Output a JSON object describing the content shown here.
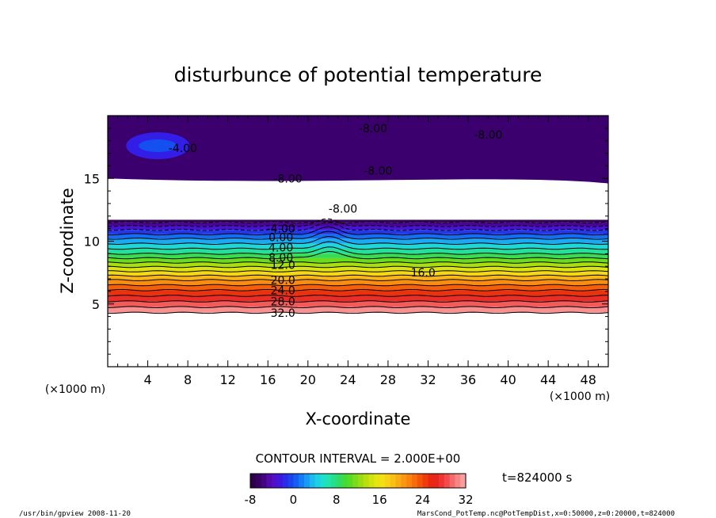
{
  "chart_data": {
    "type": "contour",
    "title": "disturbunce of potential temperature",
    "xlabel": "X-coordinate",
    "ylabel": "Z-coordinate",
    "x_unit": "(×1000 m)",
    "z_unit": "(×1000 m)",
    "xlim": [
      0,
      50
    ],
    "ylim": [
      0,
      20
    ],
    "x_ticks": [
      4,
      8,
      12,
      16,
      20,
      24,
      28,
      32,
      36,
      40,
      44,
      48
    ],
    "y_ticks": [
      5,
      10,
      15
    ],
    "contour_interval_text": "CONTOUR INTERVAL = 2.000E+00",
    "time_text": "t=824000 s",
    "colorbar": {
      "min": -8,
      "max": 32,
      "ticks": [
        -8,
        0,
        8,
        16,
        24,
        32
      ]
    },
    "contour_labels": [
      {
        "text": "32.0",
        "x": 17.5,
        "z": 4.3
      },
      {
        "text": "28.0",
        "x": 17.5,
        "z": 5.2
      },
      {
        "text": "24.0",
        "x": 17.5,
        "z": 6.1
      },
      {
        "text": "20.0",
        "x": 17.5,
        "z": 6.9
      },
      {
        "text": "16.0",
        "x": 31.5,
        "z": 7.5
      },
      {
        "text": "12.0",
        "x": 17.5,
        "z": 8.1
      },
      {
        "text": "8.00",
        "x": 17.3,
        "z": 8.7
      },
      {
        "text": "4.00",
        "x": 17.3,
        "z": 9.5
      },
      {
        "text": "0.00",
        "x": 17.3,
        "z": 10.3
      },
      {
        "text": "-4.00",
        "x": 17.3,
        "z": 11.0
      },
      {
        "text": "-8.00",
        "x": 23.5,
        "z": 12.6
      },
      {
        "text": "-8.00",
        "x": 18.0,
        "z": 15.0
      },
      {
        "text": "-8.00",
        "x": 27.0,
        "z": 15.6
      },
      {
        "text": "-4.00",
        "x": 7.5,
        "z": 17.4
      },
      {
        "text": "-8.00",
        "x": 26.5,
        "z": 19.0
      },
      {
        "text": "-8.00",
        "x": 38.0,
        "z": 18.5
      }
    ],
    "levels": [
      {
        "value": 32,
        "z": 4.3
      },
      {
        "value": 30,
        "z": 4.75
      },
      {
        "value": 28,
        "z": 5.2
      },
      {
        "value": 26,
        "z": 5.65
      },
      {
        "value": 24,
        "z": 6.1
      },
      {
        "value": 22,
        "z": 6.5
      },
      {
        "value": 20,
        "z": 6.9
      },
      {
        "value": 18,
        "z": 7.25
      },
      {
        "value": 16,
        "z": 7.6
      },
      {
        "value": 14,
        "z": 7.95
      },
      {
        "value": 12,
        "z": 8.3
      },
      {
        "value": 10,
        "z": 8.65
      },
      {
        "value": 8,
        "z": 9.0
      },
      {
        "value": 6,
        "z": 9.4
      },
      {
        "value": 4,
        "z": 9.8
      },
      {
        "value": 2,
        "z": 10.2
      },
      {
        "value": 0,
        "z": 10.55
      },
      {
        "value": -2,
        "z": 10.9
      },
      {
        "value": -4,
        "z": 11.2
      },
      {
        "value": -6,
        "z": 11.5
      }
    ]
  },
  "footer": {
    "left": "/usr/bin/gpview   2008-11-20",
    "right": "MarsCond_PotTemp.nc@PotTempDist,x=0:50000,z=0:20000,t=824000"
  }
}
